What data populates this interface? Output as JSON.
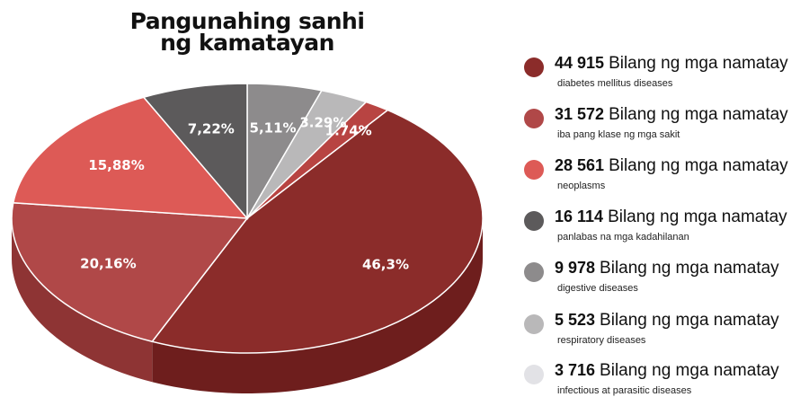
{
  "chart_data": {
    "type": "pie",
    "title": [
      "Pangunahing sanhi",
      "ng kamatayan"
    ],
    "slices": [
      {
        "label": "diabetes mellitus diseases",
        "count": "44 915",
        "percent": "46,3%",
        "value": 46.3,
        "color": "#8b2c2a",
        "side_color": "#6e1e1d"
      },
      {
        "label": "iba pang klase ng mga sakit",
        "count": "31 572",
        "percent": "20,16%",
        "value": 20.16,
        "color": "#b04848",
        "side_color": "#8e3434"
      },
      {
        "label": "neoplasms",
        "count": "28 561",
        "percent": "15,88%",
        "value": 15.88,
        "color": "#dd5a56",
        "side_color": "#b44440"
      },
      {
        "label": "panlabas na mga kadahilanan",
        "count": "16 114",
        "percent": "7,22%",
        "value": 7.22,
        "color": "#5c5a5b",
        "side_color": "#444243"
      },
      {
        "label": "digestive diseases",
        "count": "9 978",
        "percent": "5,11%",
        "value": 5.11,
        "color": "#8d8b8c",
        "side_color": "#6e6c6d"
      },
      {
        "label": "respiratory diseases",
        "count": "5 523",
        "percent": "3.29%",
        "value": 3.29,
        "color": "#b9b8b9",
        "side_color": "#9a999a"
      },
      {
        "label": "infectious at parasitic diseases",
        "count": "3 716",
        "percent": "1.74%",
        "value": 1.74,
        "color": "#b84442",
        "side_color": "#933433",
        "legend_color": "#e2e2e6"
      }
    ],
    "legend_unit": "Bilang ng mga namatay",
    "legend_placement": "right"
  }
}
